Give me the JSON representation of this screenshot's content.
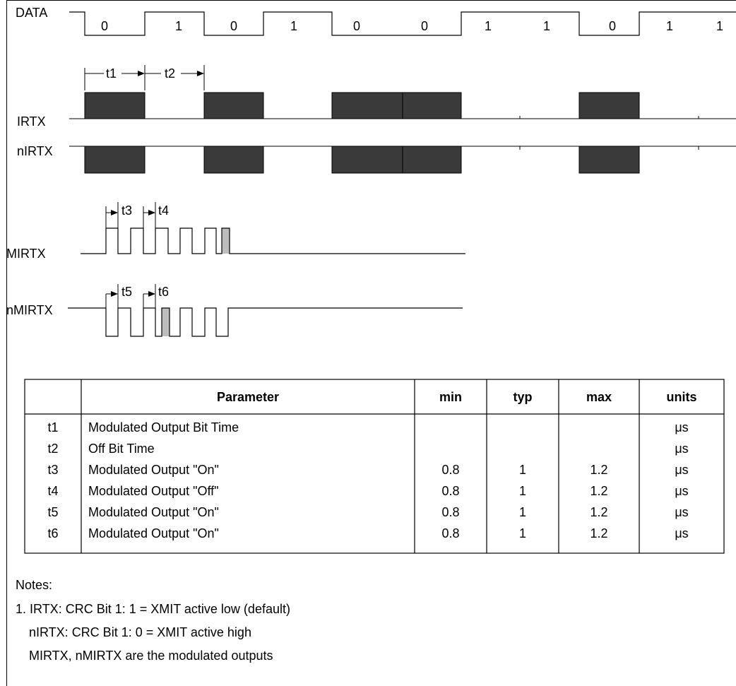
{
  "signals": {
    "data": "DATA",
    "irtx": "IRTX",
    "nirtx": "nIRTX",
    "mirtx": "MIRTX",
    "nmirtx": "nMIRTX"
  },
  "data_bits": [
    "0",
    "1",
    "0",
    "1",
    "0",
    "0",
    "1",
    "1",
    "0",
    "1",
    "1"
  ],
  "timing_labels": {
    "t1": "t1",
    "t2": "t2",
    "t3": "t3",
    "t4": "t4",
    "t5": "t5",
    "t6": "t6"
  },
  "table": {
    "headers": [
      "",
      "Parameter",
      "min",
      "typ",
      "max",
      "units"
    ],
    "rows": [
      [
        "t1",
        "Modulated Output Bit Time",
        "",
        "",
        "",
        "μs"
      ],
      [
        "t2",
        "Off Bit Time",
        "",
        "",
        "",
        "μs"
      ],
      [
        "t3",
        "Modulated Output \"On\"",
        "0.8",
        "1",
        "1.2",
        "μs"
      ],
      [
        "t4",
        "Modulated Output \"Off\"",
        "0.8",
        "1",
        "1.2",
        "μs"
      ],
      [
        "t5",
        "Modulated Output \"On\"",
        "0.8",
        "1",
        "1.2",
        "μs"
      ],
      [
        "t6",
        "Modulated Output \"On\"",
        "0.8",
        "1",
        "1.2",
        "μs"
      ]
    ]
  },
  "notes": {
    "title": "Notes:",
    "lines": [
      "1.  IRTX:  CRC Bit 1:  1 = XMIT active low (default)",
      "nIRTX:  CRC Bit 1:  0 = XMIT active high",
      "MIRTX, nMIRTX are the modulated outputs"
    ]
  }
}
